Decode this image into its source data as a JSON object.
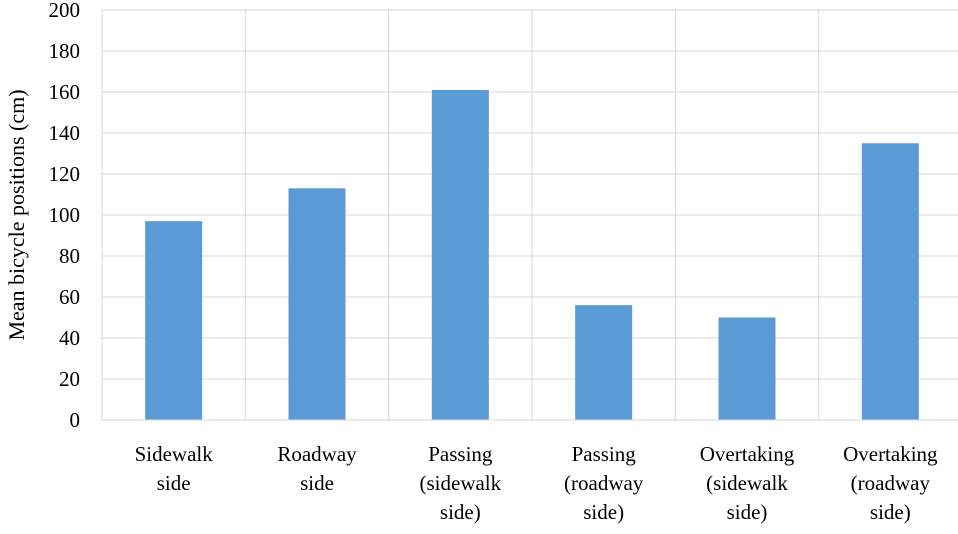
{
  "chart_data": {
    "type": "bar",
    "title": "",
    "xlabel": "",
    "ylabel": "Mean bicycle positions (cm)",
    "ylim": [
      0,
      200
    ],
    "yticks": [
      0,
      20,
      40,
      60,
      80,
      100,
      120,
      140,
      160,
      180,
      200
    ],
    "grid": true,
    "legend": "none",
    "bar_color": "#5B9BD5",
    "categories": [
      [
        "Sidewalk",
        "side"
      ],
      [
        "Roadway",
        "side"
      ],
      [
        "Passing",
        "(sidewalk",
        "side)"
      ],
      [
        "Passing",
        "(roadway",
        "side)"
      ],
      [
        "Overtaking",
        "(sidewalk",
        "side)"
      ],
      [
        "Overtaking",
        "(roadway",
        "side)"
      ]
    ],
    "values": [
      97,
      113,
      161,
      56,
      50,
      135
    ]
  }
}
